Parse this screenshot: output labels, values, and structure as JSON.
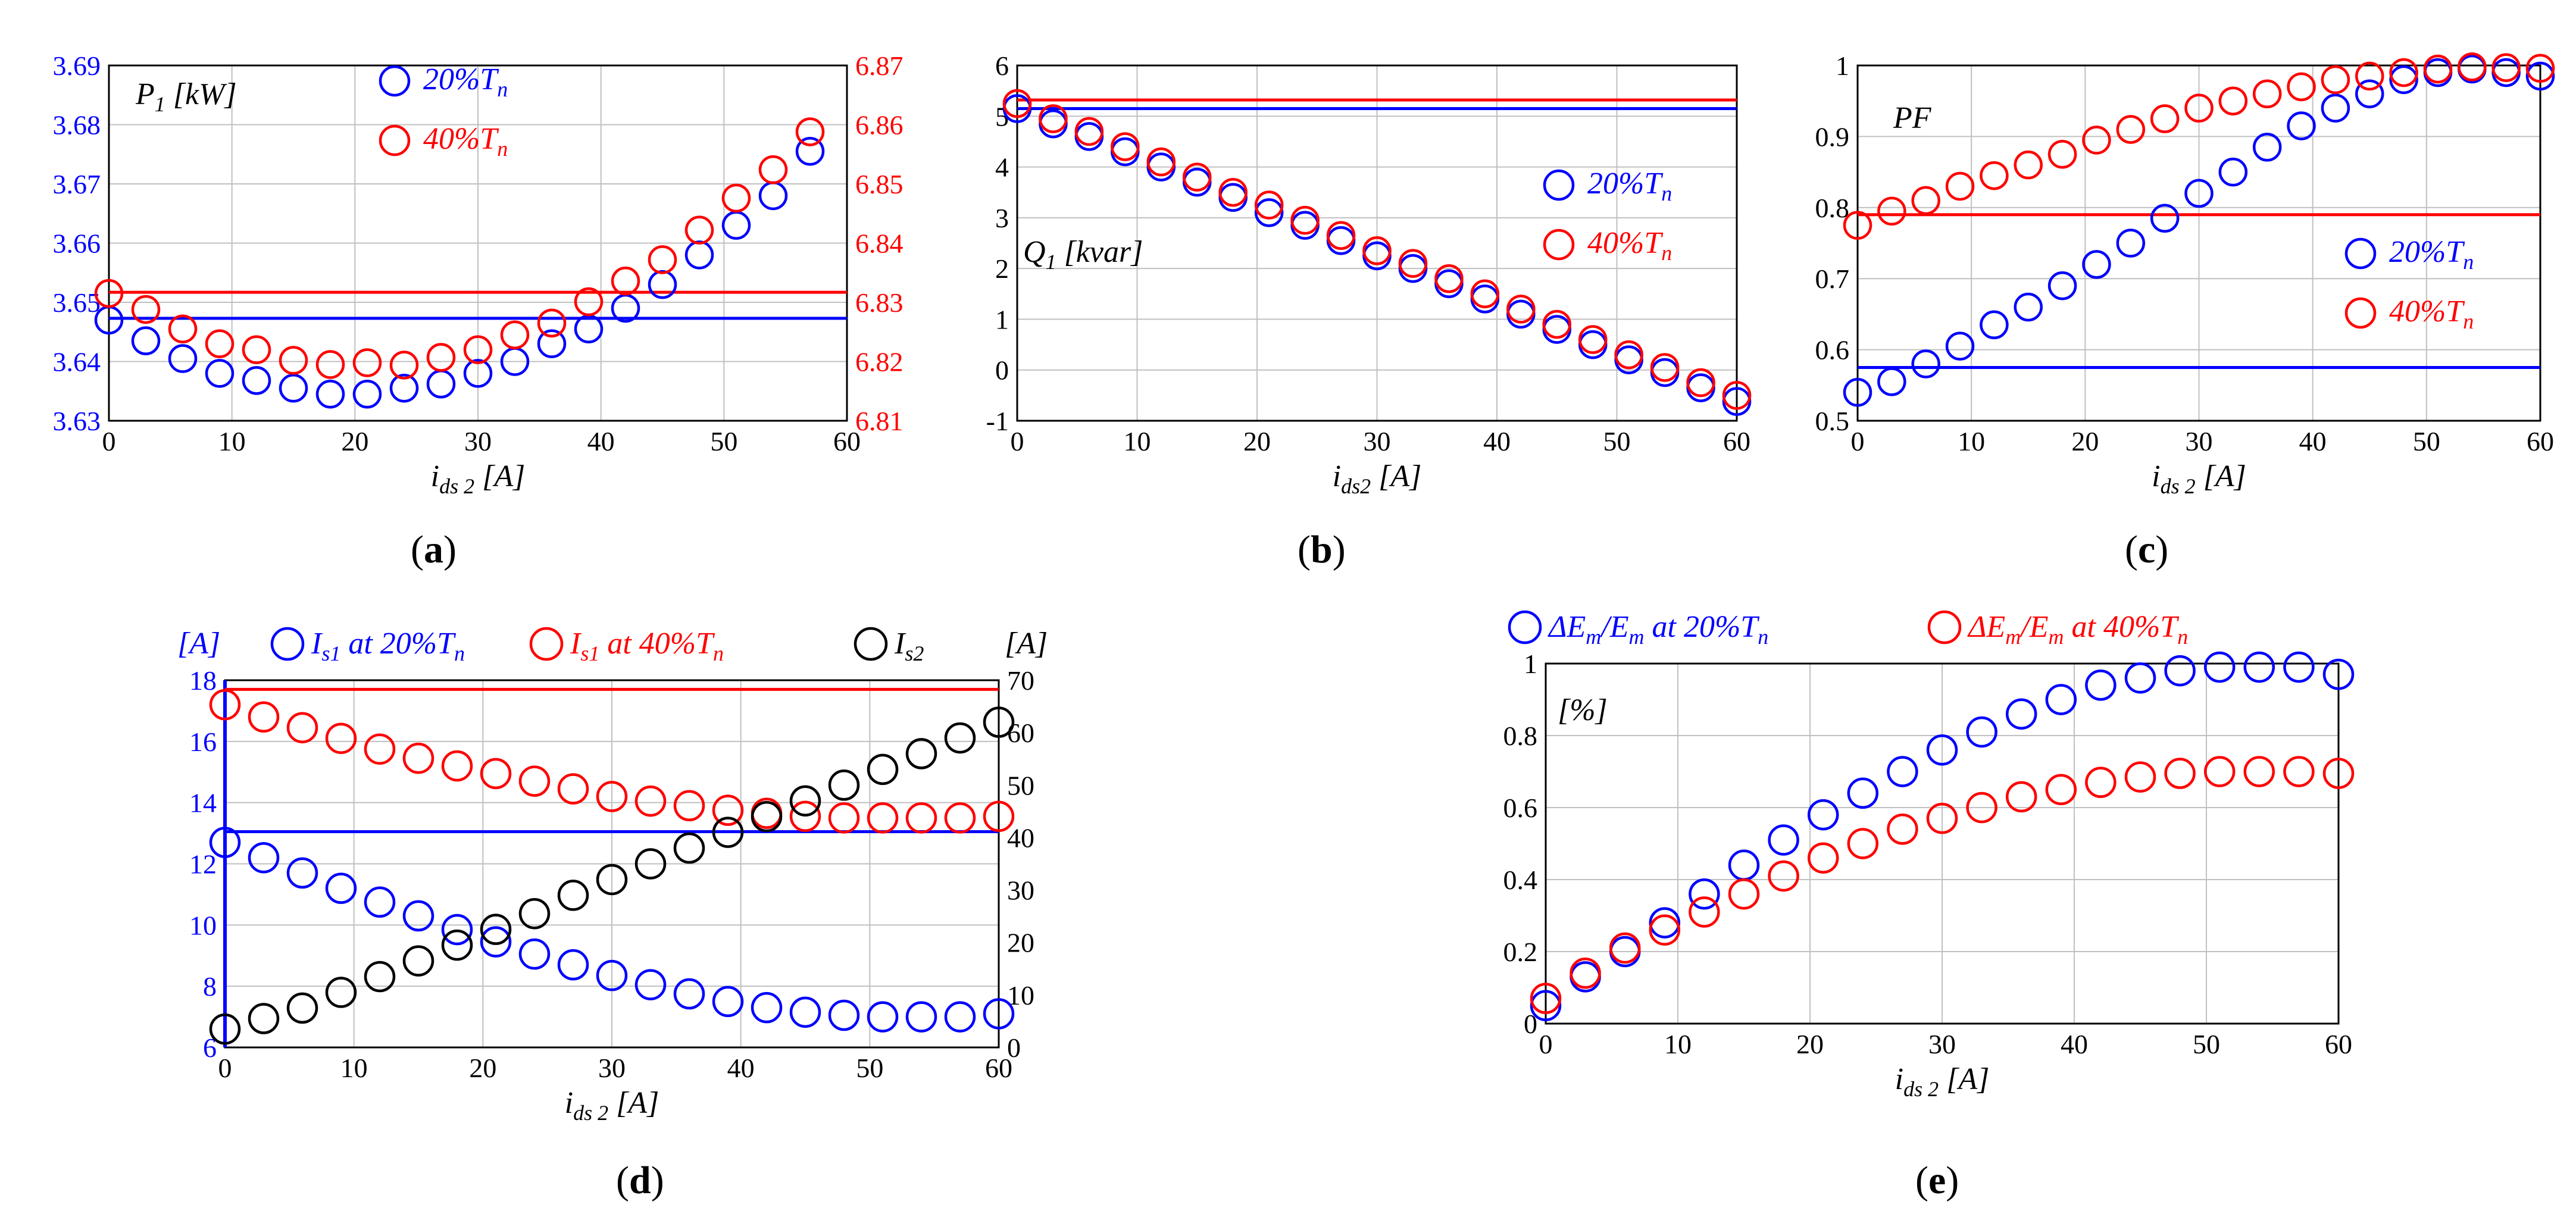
{
  "colors": {
    "blue": "#0000ff",
    "red": "#ff0000",
    "black": "#000000",
    "grid": "#c0c0c0",
    "axis": "#000000"
  },
  "chart_data": [
    {
      "id": "a",
      "type": "scatter",
      "panel_label": "a",
      "xlabel": "i",
      "xlabel_sub": "ds 2",
      "xlabel_unit": "[A]",
      "annotation": "P",
      "annotation_sub": "1",
      "annotation_unit": "[kW]",
      "xlim": [
        0,
        60
      ],
      "xticks": [
        0,
        10,
        20,
        30,
        40,
        50,
        60
      ],
      "ylim_left": [
        3.63,
        3.69
      ],
      "yticks_left": [
        3.63,
        3.64,
        3.65,
        3.66,
        3.67,
        3.68,
        3.69
      ],
      "ytick_labels_left": [
        "3.63",
        "3.64",
        "3.65",
        "3.66",
        "3.67",
        "3.68",
        "3.69"
      ],
      "ylim_right": [
        6.81,
        6.87
      ],
      "yticks_right": [
        6.81,
        6.82,
        6.83,
        6.84,
        6.85,
        6.86,
        6.87
      ],
      "ytick_labels_right": [
        "6.81",
        "6.82",
        "6.83",
        "6.84",
        "6.85",
        "6.86",
        "6.87"
      ],
      "legend": [
        {
          "label": "20%T",
          "sub": "n",
          "color": "blue"
        },
        {
          "label": "40%T",
          "sub": "n",
          "color": "red"
        }
      ],
      "x": [
        0,
        3,
        6,
        9,
        12,
        15,
        18,
        21,
        24,
        27,
        30,
        33,
        36,
        39,
        42,
        45,
        48,
        51,
        54,
        57
      ],
      "series": [
        {
          "name": "20%Tn",
          "color": "blue",
          "axis": "left",
          "values": [
            3.647,
            3.6435,
            3.6405,
            3.638,
            3.6368,
            3.6355,
            3.6345,
            3.6345,
            3.6355,
            3.6362,
            3.638,
            3.64,
            3.643,
            3.6455,
            3.649,
            3.653,
            3.658,
            3.663,
            3.668,
            3.6755
          ],
          "hline": 3.6473
        },
        {
          "name": "40%Tn",
          "color": "red",
          "axis": "right",
          "values": [
            6.8315,
            6.8288,
            6.8255,
            6.823,
            6.822,
            6.8202,
            6.8195,
            6.8198,
            6.8194,
            6.8207,
            6.822,
            6.8245,
            6.8265,
            6.8301,
            6.8336,
            6.8372,
            6.8422,
            6.8476,
            6.8524,
            6.8588
          ],
          "hline": 6.8317
        }
      ]
    },
    {
      "id": "b",
      "type": "scatter",
      "panel_label": "b",
      "xlabel": "i",
      "xlabel_sub": "ds2",
      "xlabel_unit": "[A]",
      "annotation": "Q",
      "annotation_sub": "1",
      "annotation_unit": "[kvar]",
      "xlim": [
        0,
        60
      ],
      "xticks": [
        0,
        10,
        20,
        30,
        40,
        50,
        60
      ],
      "ylim_left": [
        -1,
        6
      ],
      "yticks_left": [
        -1,
        0,
        1,
        2,
        3,
        4,
        5,
        6
      ],
      "ytick_labels_left": [
        "-1",
        "0",
        "1",
        "2",
        "3",
        "4",
        "5",
        "6"
      ],
      "legend": [
        {
          "label": "20%T",
          "sub": "n",
          "color": "blue"
        },
        {
          "label": "40%T",
          "sub": "n",
          "color": "red"
        }
      ],
      "x": [
        0,
        3,
        6,
        9,
        12,
        15,
        18,
        21,
        24,
        27,
        30,
        33,
        36,
        39,
        42,
        45,
        48,
        51,
        54,
        57,
        60
      ],
      "series": [
        {
          "name": "20%Tn",
          "color": "blue",
          "axis": "left",
          "values": [
            5.15,
            4.85,
            4.6,
            4.3,
            4.0,
            3.7,
            3.4,
            3.1,
            2.85,
            2.55,
            2.25,
            2.0,
            1.7,
            1.4,
            1.1,
            0.8,
            0.5,
            0.2,
            -0.05,
            -0.35,
            -0.62
          ],
          "hline": 5.15
        },
        {
          "name": "40%Tn",
          "color": "red",
          "axis": "left",
          "values": [
            5.25,
            4.95,
            4.7,
            4.4,
            4.1,
            3.8,
            3.5,
            3.25,
            2.95,
            2.65,
            2.35,
            2.1,
            1.8,
            1.5,
            1.2,
            0.9,
            0.6,
            0.3,
            0.05,
            -0.25,
            -0.5
          ],
          "hline": 5.32
        }
      ]
    },
    {
      "id": "c",
      "type": "scatter",
      "panel_label": "c",
      "xlabel": "i",
      "xlabel_sub": "ds 2",
      "xlabel_unit": "[A]",
      "annotation": "PF",
      "annotation_sub": "",
      "annotation_unit": "",
      "xlim": [
        0,
        60
      ],
      "xticks": [
        0,
        10,
        20,
        30,
        40,
        50,
        60
      ],
      "ylim_left": [
        0.5,
        1.0
      ],
      "yticks_left": [
        0.5,
        0.6,
        0.7,
        0.8,
        0.9,
        1.0
      ],
      "ytick_labels_left": [
        "0.5",
        "0.6",
        "0.7",
        "0.8",
        "0.9",
        "1"
      ],
      "legend": [
        {
          "label": "20%T",
          "sub": "n",
          "color": "blue"
        },
        {
          "label": "40%T",
          "sub": "n",
          "color": "red"
        }
      ],
      "x": [
        0,
        3,
        6,
        9,
        12,
        15,
        18,
        21,
        24,
        27,
        30,
        33,
        36,
        39,
        42,
        45,
        48,
        51,
        54,
        57,
        60
      ],
      "series": [
        {
          "name": "20%Tn",
          "color": "blue",
          "axis": "left",
          "values": [
            0.54,
            0.555,
            0.58,
            0.605,
            0.635,
            0.66,
            0.69,
            0.72,
            0.75,
            0.785,
            0.82,
            0.85,
            0.885,
            0.915,
            0.94,
            0.96,
            0.98,
            0.99,
            0.995,
            0.99,
            0.985
          ],
          "hline": 0.575
        },
        {
          "name": "40%Tn",
          "color": "red",
          "axis": "left",
          "values": [
            0.775,
            0.795,
            0.81,
            0.83,
            0.845,
            0.86,
            0.875,
            0.895,
            0.91,
            0.925,
            0.94,
            0.95,
            0.96,
            0.97,
            0.98,
            0.985,
            0.99,
            0.995,
            0.998,
            0.997,
            0.996
          ],
          "hline": 0.79
        }
      ]
    },
    {
      "id": "d",
      "type": "scatter",
      "panel_label": "d",
      "xlabel": "i",
      "xlabel_sub": "ds 2",
      "xlabel_unit": "[A]",
      "left_unit": "[A]",
      "right_unit": "[A]",
      "xlim": [
        0,
        60
      ],
      "xticks": [
        0,
        10,
        20,
        30,
        40,
        50,
        60
      ],
      "ylim_left": [
        6,
        18
      ],
      "yticks_left": [
        6,
        8,
        10,
        12,
        14,
        16,
        18
      ],
      "ytick_labels_left": [
        "6",
        "8",
        "10",
        "12",
        "14",
        "16",
        "18"
      ],
      "ylim_right": [
        0,
        70
      ],
      "yticks_right": [
        0,
        10,
        20,
        30,
        40,
        50,
        60,
        70
      ],
      "ytick_labels_right": [
        "0",
        "10",
        "20",
        "30",
        "40",
        "50",
        "60",
        "70"
      ],
      "legend": [
        {
          "label": "I",
          "sub": "s1",
          "suffix": " at 20%T",
          "suffix_sub": "n",
          "color": "blue"
        },
        {
          "label": "I",
          "sub": "s1",
          "suffix": " at 40%T",
          "suffix_sub": "n",
          "color": "red"
        },
        {
          "label": "I",
          "sub": "s2",
          "suffix": "",
          "suffix_sub": "",
          "color": "black"
        }
      ],
      "x": [
        0,
        3,
        6,
        9,
        12,
        15,
        18,
        21,
        24,
        27,
        30,
        33,
        36,
        39,
        42,
        45,
        48,
        51,
        54,
        57,
        60
      ],
      "series": [
        {
          "name": "Is1 at 20%Tn",
          "color": "blue",
          "axis": "left",
          "values": [
            12.7,
            12.2,
            11.7,
            11.2,
            10.75,
            10.3,
            9.85,
            9.45,
            9.05,
            8.7,
            8.35,
            8.05,
            7.75,
            7.5,
            7.3,
            7.15,
            7.05,
            7.0,
            7.0,
            7.0,
            7.1
          ],
          "hline": 13.05
        },
        {
          "name": "Is1 at 40%Tn",
          "color": "red",
          "axis": "left",
          "values": [
            17.2,
            16.8,
            16.45,
            16.1,
            15.75,
            15.45,
            15.2,
            14.95,
            14.7,
            14.45,
            14.2,
            14.05,
            13.9,
            13.75,
            13.65,
            13.55,
            13.5,
            13.5,
            13.5,
            13.5,
            13.55
          ],
          "hline": 17.7
        },
        {
          "name": "Is2",
          "color": "black",
          "axis": "right",
          "values": [
            3.5,
            5.5,
            7.5,
            10.5,
            13.5,
            16.5,
            19.5,
            22.5,
            25.5,
            29.0,
            32.0,
            35.0,
            38.0,
            41.0,
            44.0,
            47.0,
            50.0,
            53.0,
            56.0,
            59.0,
            62.0
          ]
        }
      ]
    },
    {
      "id": "e",
      "type": "scatter",
      "panel_label": "e",
      "xlabel": "i",
      "xlabel_sub": "ds 2",
      "xlabel_unit": "[A]",
      "annotation": "[%]",
      "annotation_sub": "",
      "annotation_unit": "",
      "xlim": [
        0,
        60
      ],
      "xticks": [
        0,
        10,
        20,
        30,
        40,
        50,
        60
      ],
      "ylim_left": [
        0,
        1.0
      ],
      "yticks_left": [
        0,
        0.2,
        0.4,
        0.6,
        0.8,
        1.0
      ],
      "ytick_labels_left": [
        "0",
        "0.2",
        "0.4",
        "0.6",
        "0.8",
        "1"
      ],
      "legend": [
        {
          "label": "ΔE",
          "sub": "m",
          "suffix": "/E",
          "suffix_sub": "m",
          "tail": " at 20%T",
          "tail_sub": "n",
          "color": "blue"
        },
        {
          "label": "ΔE",
          "sub": "m",
          "suffix": "/E",
          "suffix_sub": "m",
          "tail": " at 40%T",
          "tail_sub": "n",
          "color": "red"
        }
      ],
      "x": [
        0,
        3,
        6,
        9,
        12,
        15,
        18,
        21,
        24,
        27,
        30,
        33,
        36,
        39,
        42,
        45,
        48,
        51,
        54,
        57,
        60
      ],
      "series": [
        {
          "name": "ΔEm/Em at 20%Tn",
          "color": "blue",
          "axis": "left",
          "values": [
            0.05,
            0.13,
            0.2,
            0.28,
            0.36,
            0.44,
            0.51,
            0.58,
            0.64,
            0.7,
            0.76,
            0.81,
            0.86,
            0.9,
            0.94,
            0.96,
            0.98,
            0.99,
            0.99,
            0.99,
            0.97
          ]
        },
        {
          "name": "ΔEm/Em at 40%Tn",
          "color": "red",
          "axis": "left",
          "values": [
            0.07,
            0.14,
            0.21,
            0.26,
            0.31,
            0.36,
            0.41,
            0.46,
            0.5,
            0.54,
            0.57,
            0.6,
            0.63,
            0.65,
            0.67,
            0.685,
            0.695,
            0.7,
            0.7,
            0.7,
            0.695
          ]
        }
      ]
    }
  ]
}
